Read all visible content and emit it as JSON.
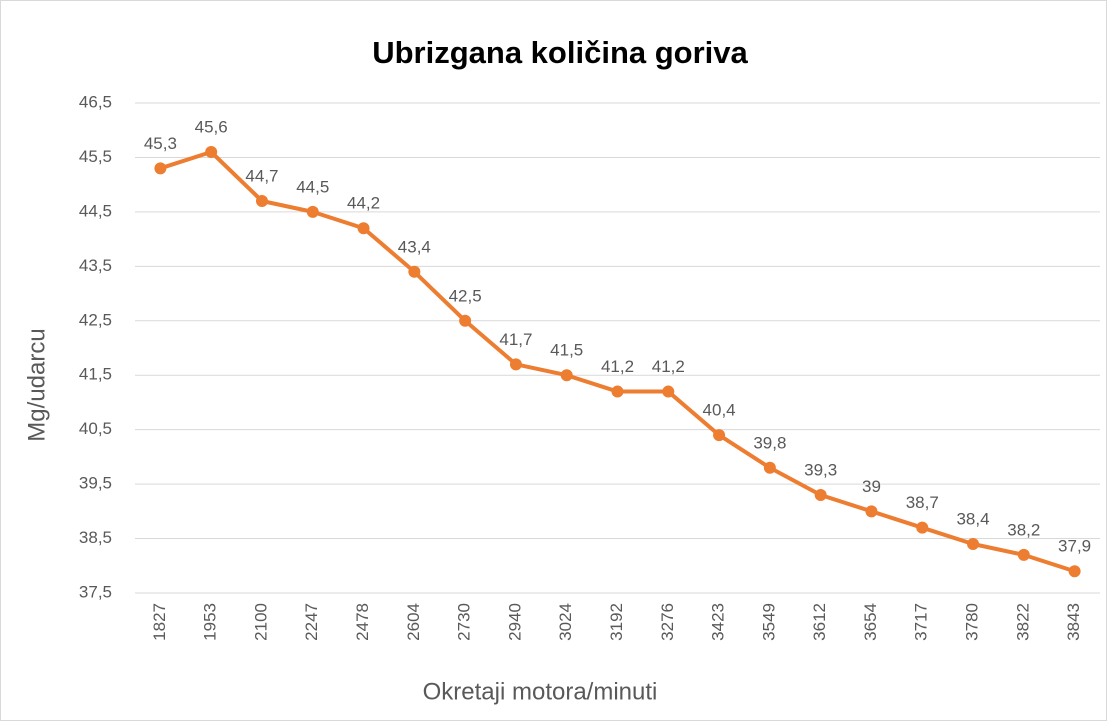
{
  "chart_data": {
    "type": "line",
    "title": "Ubrizgana količina goriva",
    "x_label": "Okretaji motora/minuti",
    "y_label": "Mg/udarcu",
    "categories": [
      "1827",
      "1953",
      "2100",
      "2247",
      "2478",
      "2604",
      "2730",
      "2940",
      "3024",
      "3192",
      "3276",
      "3423",
      "3549",
      "3612",
      "3654",
      "3717",
      "3780",
      "3822",
      "3843"
    ],
    "series": [
      {
        "name": "Mg/udarcu",
        "color": "#ed7d31",
        "values": [
          45.3,
          45.6,
          44.7,
          44.5,
          44.2,
          43.4,
          42.5,
          41.7,
          41.5,
          41.2,
          41.2,
          40.4,
          39.8,
          39.3,
          39,
          38.7,
          38.4,
          38.2,
          37.9
        ],
        "value_labels": [
          "45,3",
          "45,6",
          "44,7",
          "44,5",
          "44,2",
          "43,4",
          "42,5",
          "41,7",
          "41,5",
          "41,2",
          "41,2",
          "40,4",
          "39,8",
          "39,3",
          "39",
          "38,7",
          "38,4",
          "38,2",
          "37,9"
        ]
      }
    ],
    "ylim": [
      37.5,
      46.5
    ],
    "yticks": [
      {
        "value": 37.5,
        "label": "37,5"
      },
      {
        "value": 38.5,
        "label": "38,5"
      },
      {
        "value": 39.5,
        "label": "39,5"
      },
      {
        "value": 40.5,
        "label": "40,5"
      },
      {
        "value": 41.5,
        "label": "41,5"
      },
      {
        "value": 42.5,
        "label": "42,5"
      },
      {
        "value": 43.5,
        "label": "43,5"
      },
      {
        "value": 44.5,
        "label": "44,5"
      },
      {
        "value": 45.5,
        "label": "45,5"
      },
      {
        "value": 46.5,
        "label": "46,5"
      }
    ],
    "grid": true
  }
}
